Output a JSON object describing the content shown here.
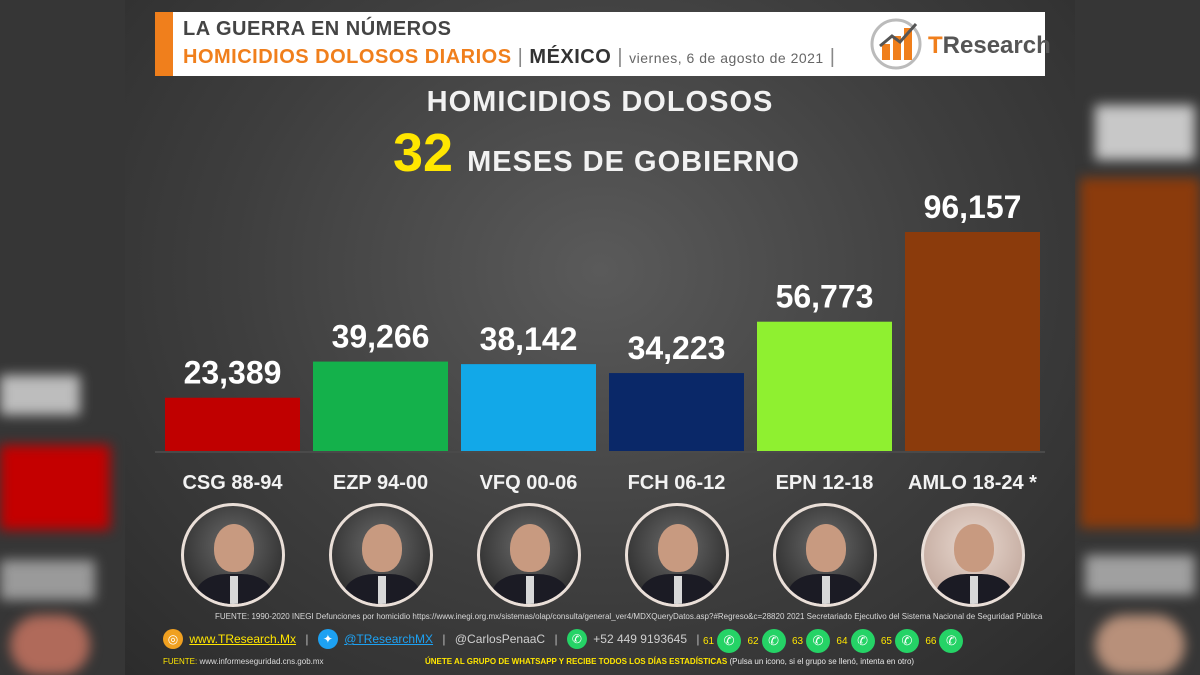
{
  "header": {
    "line1": "LA GUERRA EN NÚMEROS",
    "line2": "HOMICIDIOS DOLOSOS DIARIOS",
    "country": "MÉXICO",
    "date": "viernes, 6 de agosto de 2021",
    "separator": "|",
    "logo_t": "T",
    "logo_rest": "Research"
  },
  "chart_data": {
    "type": "bar",
    "title": "HOMICIDIOS DOLOSOS",
    "subtitle_number": "32",
    "subtitle_text": "MESES DE GOBIERNO",
    "categories": [
      "CSG 88-94",
      "EZP 94-00",
      "VFQ 00-06",
      "FCH 06-12",
      "EPN 12-18",
      "AMLO 18-24 *"
    ],
    "values": [
      23389,
      39266,
      38142,
      34223,
      56773,
      96157
    ],
    "value_labels": [
      "23,389",
      "39,266",
      "38,142",
      "34,223",
      "56,773",
      "96,157"
    ],
    "colors": [
      "#c00000",
      "#14b14b",
      "#12a8e8",
      "#0a2868",
      "#8ff030",
      "#8b3b0c"
    ],
    "ylim": [
      0,
      96157
    ],
    "grid": false,
    "legend": "none"
  },
  "source": "FUENTE: 1990-2020 INEGI Defunciones por homicidio https://www.inegi.org.mx/sistemas/olap/consulta/general_ver4/MDXQueryDatos.asp?#Regreso&c=28820 2021 Secretariado Ejecutivo del Sistema Nacional de Seguridad Pública",
  "footer": {
    "web": "www.TResearch.Mx",
    "twitter": "@TResearchMX",
    "author": "@CarlosPenaaC",
    "phone": "+52 449 9193645",
    "whatsapp_groups": [
      "61",
      "62",
      "63",
      "64",
      "65",
      "66"
    ],
    "fuente_label": "FUENTE:",
    "fuente_url": "www.informeseguridad.cns.gob.mx",
    "join_bold": "ÚNETE AL GRUPO DE WHATSAPP Y RECIBE TODOS LOS DÍAS ESTADÍSTICAS",
    "join_rest": "(Pulsa un icono, si el grupo se llenó, intenta en otro)"
  },
  "icons": {
    "web": "globe-icon",
    "twitter": "twitter-icon",
    "phone": "whatsapp-icon",
    "group": "whatsapp-icon"
  }
}
